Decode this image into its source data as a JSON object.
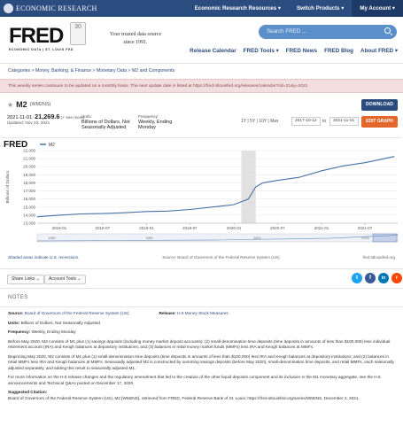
{
  "topbar": {
    "org": "ECONOMIC RESEARCH",
    "nav": [
      "Economic Research Resources ▾",
      "Switch Products ▾",
      "My Account ▾"
    ]
  },
  "header": {
    "logo_word": "FRED",
    "logo_sub": "ECONOMIC DATA | ST. LOUIS FED",
    "badge": "30",
    "tagline": "Your trusted data source since 1991.",
    "search_placeholder": "Search FRED ...",
    "subnav": [
      "Release Calendar",
      "FRED Tools ▾",
      "FRED News",
      "FRED Blog",
      "About FRED ▾"
    ]
  },
  "breadcrumb": [
    "Categories",
    "Money, Banking, & Finance",
    "Monetary Data",
    "M2 and Components"
  ],
  "notice": "This weekly series continues to be updated on a monthly basis. The next update date is listed at https://fred.stlouisfed.org/releases/calendar?rid=21&y=2021",
  "series": {
    "title": "M2",
    "code": "(WM2NS)",
    "download_label": "DOWNLOAD",
    "obs_date": "2021-11-01:",
    "obs_value": "21,269.6",
    "obs_unit": "(+ see more)",
    "updated": "Updated: Nov 23, 2021",
    "units_label": "Units:",
    "units_value": "Billions of Dollars, Not Seasonally Adjusted",
    "freq_label": "Frequency:",
    "freq_value": "Weekly, Ending Monday",
    "range_options": "1Y | 5Y | 10Y | Max",
    "start_date": "2017-10-12",
    "to_label": "to",
    "end_date": "2021-11-01",
    "edit_label": "EDIT GRAPH"
  },
  "chart_data": {
    "type": "line",
    "legend": "M2",
    "ylabel": "Billions of Dollars",
    "ylim": [
      13000,
      22000
    ],
    "yticks": [
      "13,000",
      "14,000",
      "15,000",
      "16,000",
      "17,000",
      "18,000",
      "19,000",
      "20,000",
      "21,000",
      "22,000"
    ],
    "xticks": [
      "2018-01",
      "2018-07",
      "2019-01",
      "2019-07",
      "2020-01",
      "2020-07",
      "2021-01",
      "2021-07"
    ],
    "recession": [
      "2020-02",
      "2020-04"
    ],
    "x": [
      "2017-10",
      "2018-01",
      "2018-04",
      "2018-07",
      "2018-10",
      "2019-01",
      "2019-04",
      "2019-07",
      "2019-10",
      "2020-01",
      "2020-03",
      "2020-04",
      "2020-05",
      "2020-07",
      "2020-10",
      "2021-01",
      "2021-04",
      "2021-07",
      "2021-11"
    ],
    "values": [
      13800,
      14000,
      14150,
      14200,
      14300,
      14450,
      14500,
      14700,
      15000,
      15300,
      16000,
      17500,
      18000,
      18300,
      18700,
      19500,
      20100,
      20500,
      21270
    ],
    "mini_xticks": [
      "1960",
      "1980",
      "2000",
      "2020"
    ],
    "source": "Source: Board of Governors of the Federal Reserve System (US)",
    "site": "fred.stlouisfed.org",
    "shade_note": "Shaded areas indicate U.S. recessions."
  },
  "share": {
    "share_links": "Share Links ⌄",
    "account_tools": "Account Tools ⌄",
    "social": [
      "t",
      "f",
      "in",
      "r"
    ]
  },
  "notes": {
    "header": "NOTES",
    "source_label": "Source:",
    "source_value": "Board of Governors of the Federal Reserve System (US)",
    "release_label": "Release:",
    "release_value": "H.6 Money Stock Measures",
    "units_label": "Units:",
    "units_value": "Billions of Dollars, Not Seasonally Adjusted",
    "freq_label": "Frequency:",
    "freq_value": "Weekly, Ending Monday",
    "p1": "Before May 2020, M2 consists of M1 plus (1) savings deposits (including money market deposit accounts); (2) small-denomination time deposits (time deposits in amounts of less than $100,000) less individual retirement account (IRA) and Keogh balances at depository institutions; and (3) balances in retail money market funds (MMFs) less IRA and Keogh balances at MMFs.",
    "p2": "Beginning May 2020, M2 consists of M1 plus (1) small-denomination time deposits (time deposits in amounts of less than $100,000) less IRA and Keogh balances at depository institutions; and (2) balances in retail MMFs less IRA and Keogh balances at MMFs. Seasonally adjusted M2 is constructed by summing savings deposits (before May 2020), small-denomination time deposits, and retail MMFs, each seasonally adjusted separately, and adding this result to seasonally adjusted M1.",
    "p3": "For more information on the H.6 release changes and the regulatory amendment that led to the creation of the other liquid deposits component and its inclusion in the M1 monetary aggregate, see the H.6 announcements and Technical Q&As posted on December 17, 2020.",
    "citation_label": "Suggested Citation:",
    "citation": "Board of Governors of the Federal Reserve System (US), M2 [WM2NS], retrieved from FRED, Federal Reserve Bank of St. Louis; https://fred.stlouisfed.org/series/WM2NS, December 2, 2021."
  }
}
